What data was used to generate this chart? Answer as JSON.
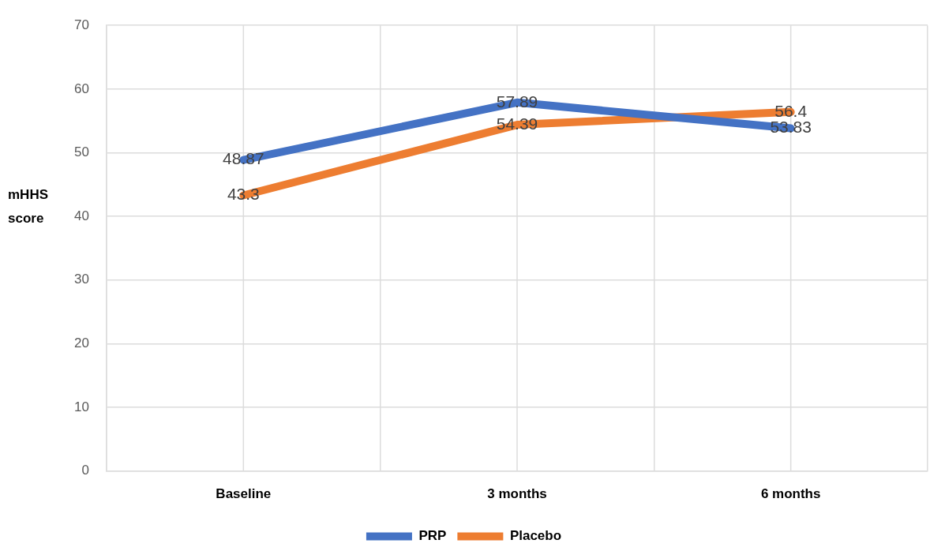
{
  "chart_data": {
    "type": "line",
    "ylabel": "mHHS score",
    "categories": [
      "Baseline",
      "3 months",
      "6 months"
    ],
    "series": [
      {
        "name": "PRP",
        "color": "#4472c4",
        "values": [
          48.87,
          57.89,
          53.83
        ]
      },
      {
        "name": "Placebo",
        "color": "#ed7d31",
        "values": [
          43.3,
          54.39,
          56.4
        ]
      }
    ],
    "ylim": [
      0,
      70
    ],
    "yticks": [
      0,
      10,
      20,
      30,
      40,
      50,
      60,
      70
    ],
    "grid": true,
    "legend": "bottom",
    "data_labels": true,
    "marker": "none",
    "line_style": "solid"
  }
}
